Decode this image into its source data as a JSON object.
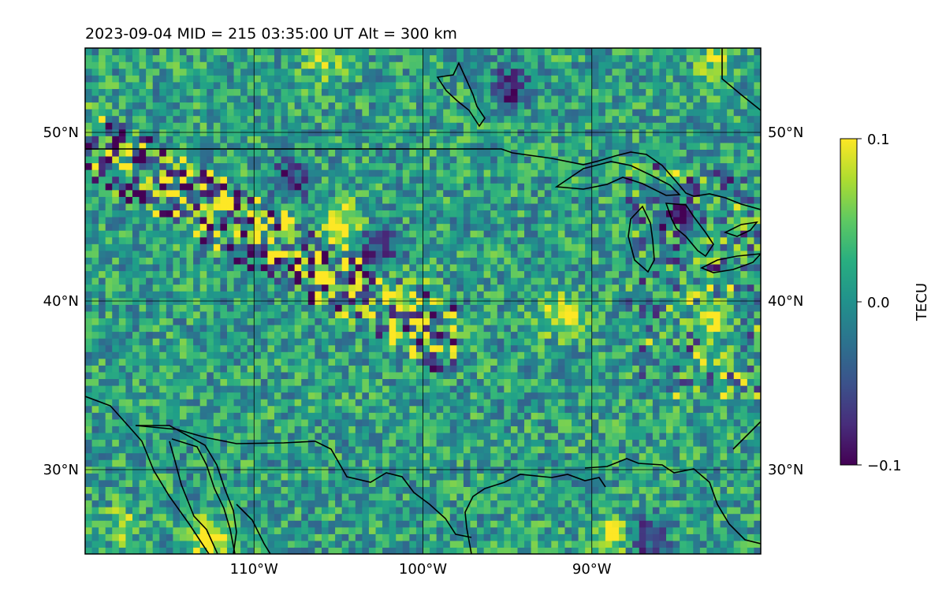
{
  "chart_data": {
    "type": "heatmap",
    "title": "2023-09-04  MID = 215    03:35:00  UT  Alt = 300 km",
    "x_ticks": [
      {
        "value": -110,
        "label": "110°W"
      },
      {
        "value": -100,
        "label": "100°W"
      },
      {
        "value": -90,
        "label": "90°W"
      }
    ],
    "y_ticks": [
      {
        "value": 50,
        "label": "50°N"
      },
      {
        "value": 40,
        "label": "40°N"
      },
      {
        "value": 30,
        "label": "30°N"
      }
    ],
    "xlim": [
      -120,
      -80
    ],
    "ylim": [
      25,
      55
    ],
    "grid": true,
    "colorbar": {
      "label": "TECU",
      "range": [
        -0.1,
        0.1
      ],
      "ticks": [
        {
          "value": 0.1,
          "label": "0.1"
        },
        {
          "value": 0.0,
          "label": "0.0"
        },
        {
          "value": -0.1,
          "label": "−0.1"
        }
      ],
      "colormap": "viridis"
    },
    "colors": {
      "low": "#440154",
      "mid": "#21918c",
      "high": "#fde725"
    },
    "features": [
      {
        "lon": -105,
        "lat": 44.5,
        "value": 0.1
      },
      {
        "lon": -103,
        "lat": 43,
        "value": -0.1
      },
      {
        "lon": -108,
        "lat": 47,
        "value": -0.1
      },
      {
        "lon": -101,
        "lat": 40,
        "value": 0.1
      },
      {
        "lon": -95,
        "lat": 52.5,
        "value": -0.1
      },
      {
        "lon": -113,
        "lat": 25.8,
        "value": 0.1
      },
      {
        "lon": -89,
        "lat": 25.8,
        "value": 0.1
      },
      {
        "lon": -87,
        "lat": 25.8,
        "value": -0.1
      },
      {
        "lon": -118,
        "lat": 26.5,
        "value": 0.05
      },
      {
        "lon": -106,
        "lat": 54,
        "value": 0.06
      },
      {
        "lon": -83,
        "lat": 54,
        "value": 0.05
      },
      {
        "lon": -85,
        "lat": 45,
        "value": -0.1
      },
      {
        "lon": -83,
        "lat": 39,
        "value": 0.1
      },
      {
        "lon": -92,
        "lat": 39,
        "value": 0.09
      }
    ]
  }
}
